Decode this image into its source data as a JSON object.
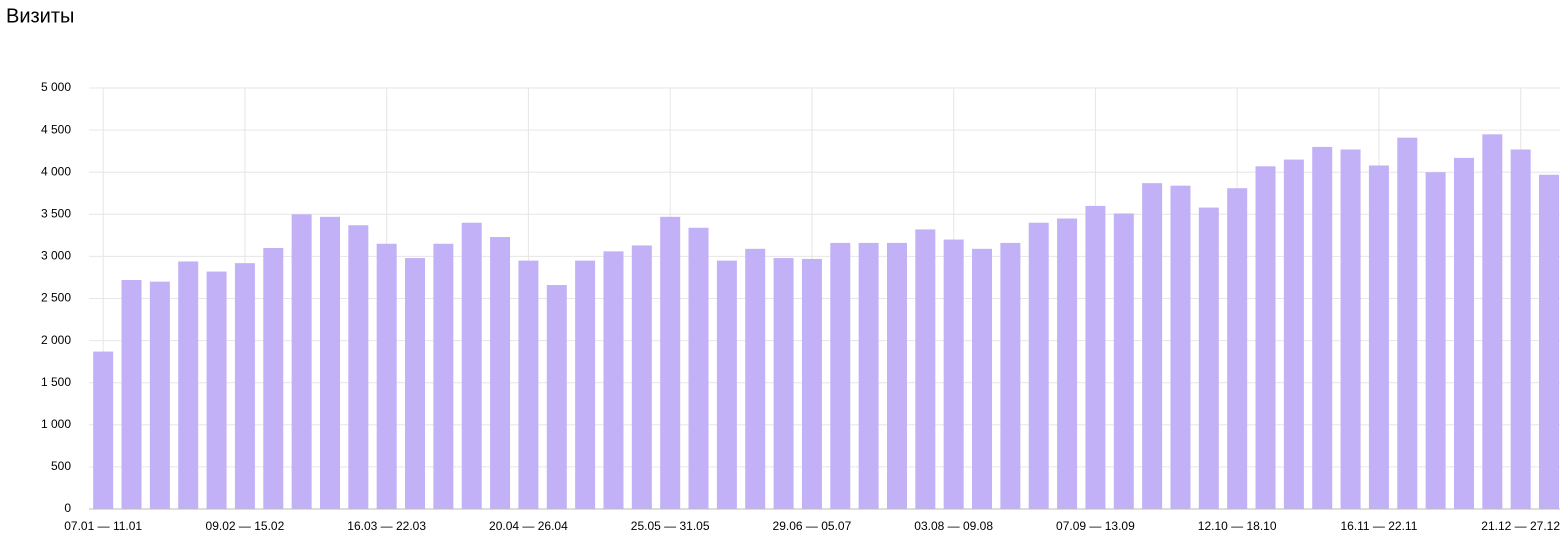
{
  "chart_data": {
    "type": "bar",
    "title": "Визиты",
    "categories": [
      "07.01 — 11.01",
      null,
      null,
      null,
      null,
      "09.02 — 15.02",
      null,
      null,
      null,
      null,
      "16.03 — 22.03",
      null,
      null,
      null,
      null,
      "20.04 — 26.04",
      null,
      null,
      null,
      null,
      "25.05 — 31.05",
      null,
      null,
      null,
      null,
      "29.06 — 05.07",
      null,
      null,
      null,
      null,
      "03.08 — 09.08",
      null,
      null,
      null,
      null,
      "07.09 — 13.09",
      null,
      null,
      null,
      null,
      "12.10 — 18.10",
      null,
      null,
      null,
      null,
      "16.11 — 22.11",
      null,
      null,
      null,
      null,
      "21.12 — 27.12",
      null
    ],
    "values": [
      1870,
      2720,
      2700,
      2940,
      2820,
      2920,
      3100,
      3500,
      3470,
      3370,
      3150,
      2980,
      3150,
      3400,
      3230,
      2950,
      2660,
      2950,
      3060,
      3130,
      3470,
      3340,
      2950,
      3090,
      2980,
      2970,
      3160,
      3160,
      3160,
      3320,
      3200,
      3090,
      3160,
      3400,
      3450,
      3600,
      3510,
      3870,
      3840,
      3580,
      3810,
      4070,
      4150,
      4300,
      4270,
      4080,
      4410,
      4000,
      4170,
      4450,
      4270,
      3970
    ],
    "color": "#c3b1f7",
    "ylim": [
      0,
      5000
    ],
    "yticks": [
      0,
      500,
      {
        "value": 1000,
        "label": "1 000"
      },
      {
        "value": 1500,
        "label": "1 500"
      },
      {
        "value": 2000,
        "label": "2 000"
      },
      {
        "value": 2500,
        "label": "2 500"
      },
      {
        "value": 3000,
        "label": "3 000"
      },
      {
        "value": 3500,
        "label": "3 500"
      },
      {
        "value": 4000,
        "label": "4 000"
      },
      {
        "value": 4500,
        "label": "4 500"
      },
      {
        "value": 5000,
        "label": "5 000"
      }
    ],
    "grid": true
  }
}
